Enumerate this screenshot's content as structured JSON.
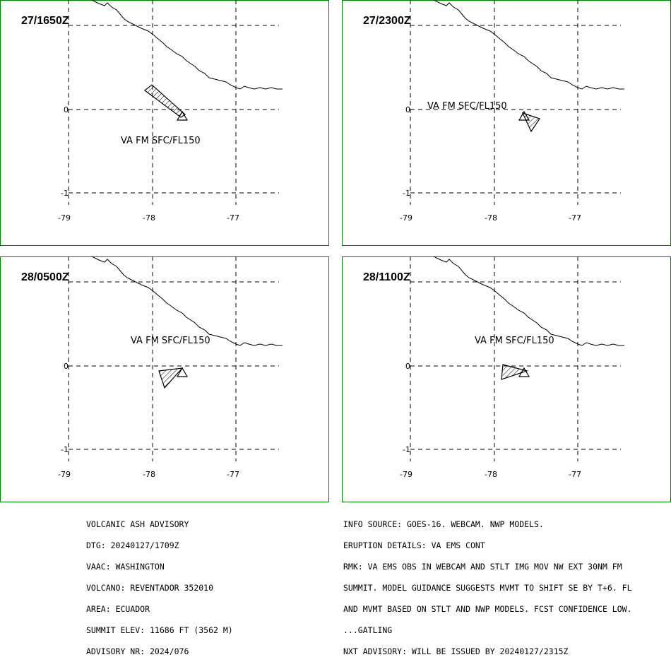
{
  "panels": [
    {
      "title": "27/1650Z",
      "va_label": "VA FM SFC/FL150"
    },
    {
      "title": "27/2300Z",
      "va_label": "VA FM SFC/FL150"
    },
    {
      "title": "28/0500Z",
      "va_label": "VA FM SFC/FL150"
    },
    {
      "title": "28/1100Z",
      "va_label": "VA FM SFC/FL150"
    }
  ],
  "axes": {
    "lat_ticks": [
      "0",
      "-1"
    ],
    "lon_ticks": [
      "-79",
      "-78",
      "-77"
    ]
  },
  "advisory_left": [
    "VOLCANIC ASH ADVISORY",
    "DTG: 20240127/1709Z",
    "VAAC: WASHINGTON",
    "VOLCANO: REVENTADOR 352010",
    "AREA: ECUADOR",
    "SUMMIT ELEV: 11686 FT (3562 M)",
    "ADVISORY NR: 2024/076"
  ],
  "advisory_right": [
    "INFO SOURCE: GOES-16. WEBCAM. NWP MODELS.",
    "ERUPTION DETAILS: VA EMS CONT",
    "RMK: VA EMS OBS IN WEBCAM AND STLT IMG MOV NW EXT 30NM FM",
    "SUMMIT. MODEL GUIDANCE SUGGESTS MVMT TO SHIFT SE BY T+6. FL",
    "AND MVMT BASED ON STLT AND NWP MODELS. FCST CONFIDENCE LOW.",
    "...GATLING",
    "NXT ADVISORY: WILL BE ISSUED BY 20240127/2315Z"
  ],
  "colors": {
    "frame": "#008000",
    "ink": "#000000"
  }
}
